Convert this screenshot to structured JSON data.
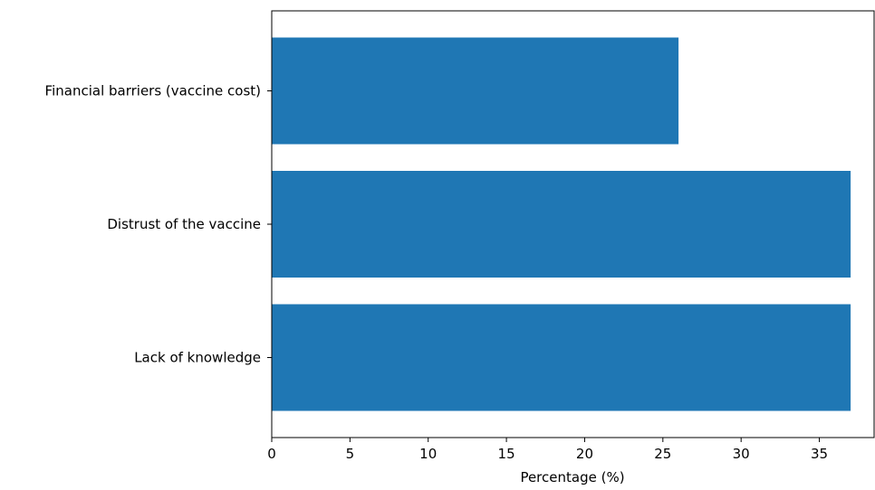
{
  "chart_data": {
    "type": "bar",
    "orientation": "horizontal",
    "categories": [
      "Lack of knowledge",
      "Distrust of the vaccine",
      "Financial barriers (vaccine cost)"
    ],
    "values": [
      37,
      37,
      26
    ],
    "xlabel": "Percentage (%)",
    "ylabel": "",
    "title": "",
    "xlim": [
      0,
      38.5
    ],
    "xticks": [
      0,
      5,
      10,
      15,
      20,
      25,
      30,
      35
    ],
    "grid": false,
    "bar_color": "#1f77b4"
  }
}
